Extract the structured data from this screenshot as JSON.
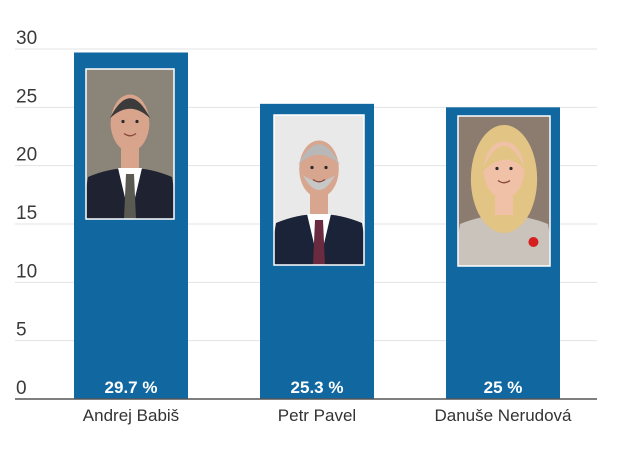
{
  "colors": {
    "bar": "#1167a0",
    "text": "#333333",
    "grid": "#e3e3e3"
  },
  "chart_data": {
    "type": "bar",
    "categories": [
      "Andrej Babiš",
      "Petr Pavel",
      "Danuše Nerudová"
    ],
    "values": [
      29.7,
      25.3,
      25
    ],
    "value_labels": [
      "29.7 %",
      "25.3 %",
      "25 %"
    ],
    "yticks": [
      "0",
      "5",
      "10",
      "15",
      "20",
      "25",
      "30"
    ],
    "ylim": [
      0,
      30
    ],
    "grid": true,
    "legend": "none",
    "candidate_photos": [
      "andrej-babis-photo",
      "petr-pavel-photo",
      "danuse-nerudova-photo"
    ]
  }
}
